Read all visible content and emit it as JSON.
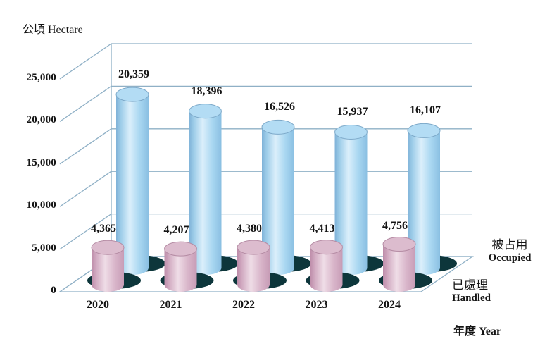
{
  "chart_data": {
    "type": "bar",
    "variant": "3d-cylinder-bar",
    "title": "",
    "ylabel": "公頃 Hectare",
    "xlabel": "年度 Year",
    "categories": [
      "2020",
      "2021",
      "2022",
      "2023",
      "2024"
    ],
    "series": [
      {
        "name_zh": "被占用",
        "name_en": "Occupied",
        "values": [
          20359,
          18396,
          16526,
          15937,
          16107
        ],
        "labels": [
          "20,359",
          "18,396",
          "16,526",
          "15,937",
          "16,107"
        ],
        "color": "#a9d5ef"
      },
      {
        "name_zh": "已處理",
        "name_en": "Handled",
        "values": [
          4365,
          4207,
          4380,
          4413,
          4756
        ],
        "labels": [
          "4,365",
          "4,207",
          "4,380",
          "4,413",
          "4,756"
        ],
        "color": "#dcbccd"
      }
    ],
    "ylim": [
      0,
      25000
    ],
    "yticks": [
      0,
      5000,
      10000,
      15000,
      20000,
      25000
    ],
    "ytick_labels": [
      "0",
      "5,000",
      "10,000",
      "15,000",
      "20,000",
      "25,000"
    ],
    "grid": true,
    "legend_position": "right"
  },
  "colors": {
    "occupied_cylinder": "#a9d5ef",
    "handled_cylinder": "#dcbccd",
    "shadow": "#0d363b",
    "gridline": "#8fb0c6",
    "text": "#141414",
    "background": "#ffffff"
  }
}
